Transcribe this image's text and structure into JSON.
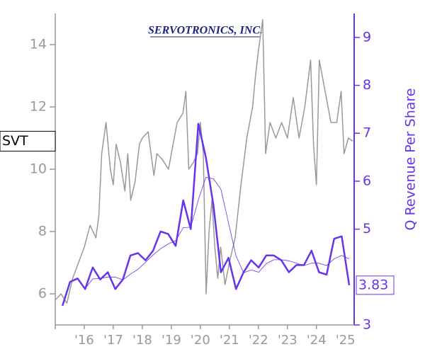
{
  "chart_data": {
    "type": "line",
    "logo": "SERVOTRONICS, INC.",
    "y2label": "Q Revenue Per Share",
    "xlim": [
      2015,
      2025.3
    ],
    "xticks": [
      {
        "value": 2016,
        "label": "'16"
      },
      {
        "value": 2017,
        "label": "'17"
      },
      {
        "value": 2018,
        "label": "'18"
      },
      {
        "value": 2019,
        "label": "'19"
      },
      {
        "value": 2020,
        "label": "'20"
      },
      {
        "value": 2021,
        "label": "'21"
      },
      {
        "value": 2022,
        "label": "'22"
      },
      {
        "value": 2023,
        "label": "'23"
      },
      {
        "value": 2024,
        "label": "'24"
      },
      {
        "value": 2025,
        "label": "'25"
      }
    ],
    "ylim": [
      5,
      15
    ],
    "yticks": [
      6,
      8,
      10,
      12,
      14
    ],
    "y2lim": [
      3,
      9.5
    ],
    "y2ticks": [
      3,
      5,
      6,
      7,
      8,
      9
    ],
    "series": [
      {
        "name": "SVT",
        "color": "#999999",
        "x": [
          2015.0,
          2015.2,
          2015.4,
          2015.6,
          2015.8,
          2016.0,
          2016.2,
          2016.4,
          2016.5,
          2016.6,
          2016.75,
          2016.9,
          2017.0,
          2017.1,
          2017.25,
          2017.4,
          2017.5,
          2017.6,
          2017.75,
          2017.9,
          2018.0,
          2018.2,
          2018.4,
          2018.5,
          2018.7,
          2018.9,
          2019.0,
          2019.2,
          2019.4,
          2019.5,
          2019.6,
          2019.75,
          2019.9,
          2020.0,
          2020.1,
          2020.2,
          2020.3,
          2020.4,
          2020.5,
          2020.6,
          2020.7,
          2020.85,
          2021.0,
          2021.2,
          2021.4,
          2021.6,
          2021.8,
          2021.9,
          2022.0,
          2022.15,
          2022.25,
          2022.4,
          2022.6,
          2022.8,
          2023.0,
          2023.2,
          2023.4,
          2023.6,
          2023.8,
          2023.9,
          2024.0,
          2024.1,
          2024.3,
          2024.5,
          2024.7,
          2024.85,
          2024.95,
          2025.1,
          2025.25
        ],
        "values": [
          5.8,
          6.0,
          5.7,
          6.5,
          7.0,
          7.5,
          8.2,
          7.8,
          8.5,
          10.5,
          11.5,
          10.0,
          9.5,
          10.8,
          10.2,
          9.3,
          10.5,
          9.0,
          9.6,
          10.8,
          11.0,
          11.2,
          9.8,
          10.5,
          10.3,
          10.0,
          10.5,
          11.5,
          11.8,
          12.5,
          10.0,
          10.2,
          10.5,
          11.5,
          10.5,
          6.0,
          8.0,
          9.0,
          7.5,
          6.5,
          7.5,
          6.3,
          7.0,
          7.8,
          9.5,
          11.0,
          12.0,
          13.0,
          13.8,
          14.8,
          10.5,
          11.5,
          11.0,
          11.5,
          11.0,
          12.3,
          11.0,
          12.0,
          13.5,
          10.8,
          9.5,
          13.5,
          12.5,
          11.5,
          11.5,
          12.5,
          10.5,
          11.0,
          10.9
        ]
      },
      {
        "axis": "y2",
        "color": "#6633ee",
        "width": 2.5,
        "x": [
          2015.25,
          2015.51,
          2015.77,
          2016.03,
          2016.29,
          2016.55,
          2016.81,
          2017.07,
          2017.33,
          2017.59,
          2017.85,
          2018.11,
          2018.37,
          2018.63,
          2018.89,
          2019.15,
          2019.41,
          2019.67,
          2019.93,
          2020.19,
          2020.45,
          2020.71,
          2020.97,
          2021.23,
          2021.49,
          2021.75,
          2022.01,
          2022.27,
          2022.53,
          2022.79,
          2023.05,
          2023.31,
          2023.57,
          2023.83,
          2024.09,
          2024.35,
          2024.61,
          2024.87,
          2025.13
        ],
        "values": [
          3.4,
          3.9,
          3.97,
          3.75,
          4.2,
          3.95,
          4.1,
          3.75,
          3.95,
          4.45,
          4.5,
          4.35,
          4.55,
          4.95,
          4.9,
          4.65,
          5.6,
          5.0,
          7.2,
          6.5,
          5.5,
          4.1,
          4.4,
          3.75,
          4.1,
          4.35,
          4.2,
          4.45,
          4.45,
          4.35,
          4.1,
          4.25,
          4.25,
          4.55,
          4.1,
          4.05,
          4.8,
          4.85,
          3.83
        ]
      },
      {
        "axis": "y2",
        "color": "#6633ee",
        "width": 0.8,
        "x": [
          2015.25,
          2015.51,
          2015.77,
          2016.03,
          2016.29,
          2016.55,
          2016.81,
          2017.07,
          2017.33,
          2017.59,
          2017.85,
          2018.11,
          2018.37,
          2018.63,
          2018.89,
          2019.15,
          2019.41,
          2019.67,
          2019.93,
          2020.19,
          2020.45,
          2020.71,
          2020.97,
          2021.23,
          2021.49,
          2021.75,
          2022.01,
          2022.27,
          2022.53,
          2022.79,
          2023.05,
          2023.31,
          2023.57,
          2023.83,
          2024.09,
          2024.35,
          2024.61,
          2024.87,
          2025.13
        ],
        "values": [
          null,
          null,
          null,
          3.76,
          3.96,
          3.97,
          4.0,
          4.0,
          3.94,
          4.06,
          4.16,
          4.31,
          4.46,
          4.59,
          4.69,
          4.76,
          5.03,
          5.04,
          5.61,
          6.08,
          6.05,
          5.83,
          5.13,
          4.44,
          4.09,
          4.15,
          4.1,
          4.28,
          4.36,
          4.36,
          4.34,
          4.29,
          4.24,
          4.29,
          4.29,
          4.24,
          4.38,
          4.45,
          4.38
        ]
      }
    ]
  }
}
